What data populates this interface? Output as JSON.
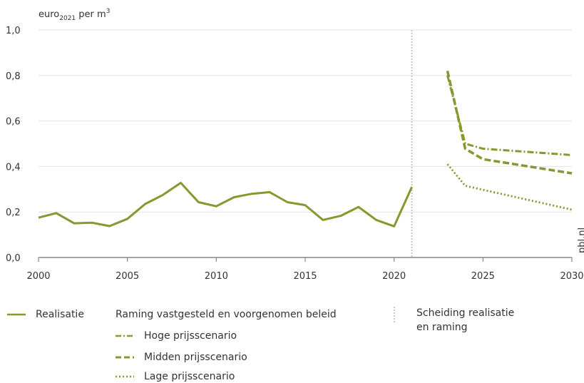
{
  "colors": {
    "line": "#8a962e",
    "grid": "#e3e3e3",
    "axis": "#888888",
    "divider": "#c8c8c8"
  },
  "chart_data": {
    "type": "line",
    "ylabel_main": "euro",
    "ylabel_sub": "2021",
    "ylabel_rest": " per m",
    "ylabel_sup": "3",
    "source_label": "pbl.nl",
    "xlim": [
      2000,
      2030
    ],
    "ylim": [
      0,
      1.0
    ],
    "xticks": [
      2000,
      2005,
      2010,
      2015,
      2020,
      2025,
      2030
    ],
    "xtick_labels": [
      "2000",
      "2005",
      "2010",
      "2015",
      "2020",
      "2025",
      "2030"
    ],
    "yticks": [
      0,
      0.2,
      0.4,
      0.6,
      0.8,
      1.0
    ],
    "ytick_labels": [
      "0,0",
      "0,2",
      "0,4",
      "0,6",
      "0,8",
      "1,0"
    ],
    "grid": true,
    "divider_x": 2021,
    "series": [
      {
        "name": "Realisatie",
        "style": "solid",
        "x": [
          2000,
          2001,
          2002,
          2003,
          2004,
          2005,
          2006,
          2007,
          2008,
          2009,
          2010,
          2011,
          2012,
          2013,
          2014,
          2015,
          2016,
          2017,
          2018,
          2019,
          2020,
          2021
        ],
        "y": [
          0.175,
          0.195,
          0.15,
          0.153,
          0.138,
          0.17,
          0.235,
          0.275,
          0.328,
          0.243,
          0.225,
          0.265,
          0.28,
          0.287,
          0.243,
          0.23,
          0.165,
          0.183,
          0.222,
          0.165,
          0.137,
          0.31
        ]
      },
      {
        "name": "Hoge prijsscenario",
        "style": "dashdot",
        "x": [
          2023,
          2024,
          2025,
          2030
        ],
        "y": [
          0.8,
          0.5,
          0.478,
          0.45
        ]
      },
      {
        "name": "Midden prijsscenario",
        "style": "dashed",
        "x": [
          2023,
          2024,
          2025,
          2030
        ],
        "y": [
          0.82,
          0.478,
          0.432,
          0.37
        ]
      },
      {
        "name": "Lage prijsscenario",
        "style": "dotted",
        "x": [
          2023,
          2024,
          2030
        ],
        "y": [
          0.41,
          0.315,
          0.21
        ]
      }
    ]
  },
  "legend": {
    "realisatie": "Realisatie",
    "raming_header": "Raming vastgesteld en voorgenomen beleid",
    "hoge": "Hoge prijsscenario",
    "midden": "Midden prijsscenario",
    "lage": "Lage prijsscenario",
    "scheiding_line1": "Scheiding realisatie",
    "scheiding_line2": "en raming"
  }
}
